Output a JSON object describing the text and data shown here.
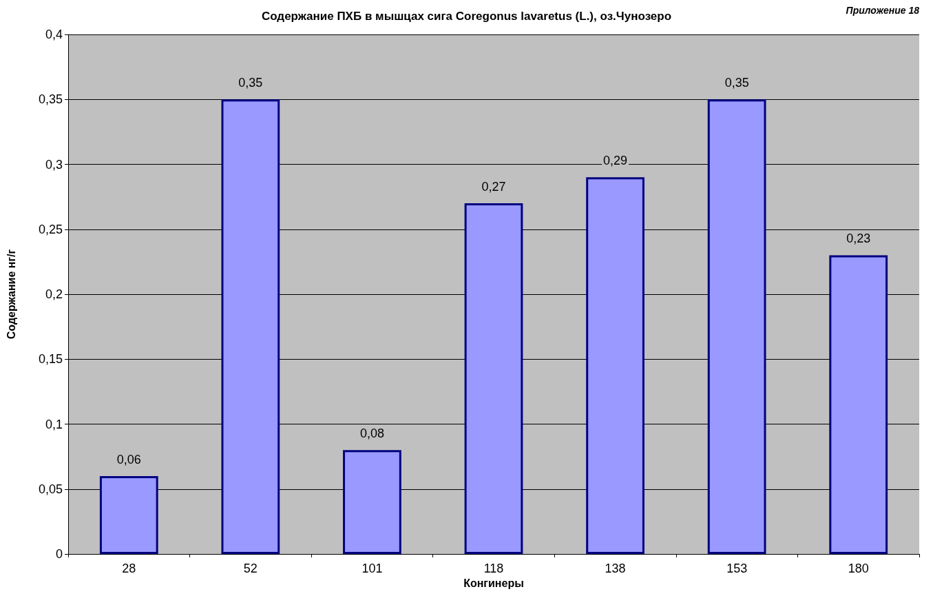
{
  "chart_data": {
    "type": "bar",
    "title": "Содержание ПХБ в мышцах сига Coregonus lavaretus (L.), оз.Чунозеро",
    "xlabel": "Конгинеры",
    "ylabel": "Содержание нг/г",
    "annotations": [
      "Приложение 18"
    ],
    "categories": [
      "28",
      "52",
      "101",
      "118",
      "138",
      "153",
      "180"
    ],
    "values": [
      0.06,
      0.35,
      0.08,
      0.27,
      0.29,
      0.35,
      0.23
    ],
    "value_labels": [
      "0,06",
      "0,35",
      "0,08",
      "0,27",
      "0,29",
      "0,35",
      "0,23"
    ],
    "color": "#9999ff",
    "ylim": [
      0,
      0.4
    ],
    "yticks": [
      {
        "value": 0,
        "label": "0"
      },
      {
        "value": 0.05,
        "label": "0,05"
      },
      {
        "value": 0.1,
        "label": "0,1"
      },
      {
        "value": 0.15,
        "label": "0,15"
      },
      {
        "value": 0.2,
        "label": "0,2"
      },
      {
        "value": 0.25,
        "label": "0,25"
      },
      {
        "value": 0.3,
        "label": "0,3"
      },
      {
        "value": 0.35,
        "label": "0,35"
      },
      {
        "value": 0.4,
        "label": "0,4"
      }
    ],
    "grid": "y"
  }
}
